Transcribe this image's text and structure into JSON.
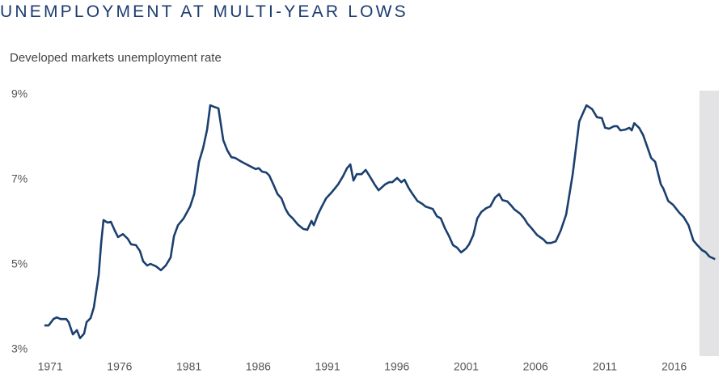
{
  "chart_data": {
    "type": "line",
    "title": "UNEMPLOYMENT AT MULTI-YEAR LOWS",
    "subtitle": "Developed markets unemployment rate",
    "xlim": [
      1970,
      2019.4
    ],
    "xticks": [
      1971,
      1976,
      1981,
      1986,
      1991,
      1996,
      2001,
      2006,
      2011,
      2016
    ],
    "ylim": [
      3,
      9
    ],
    "yticks": [
      {
        "value": 3,
        "label": "3%"
      },
      {
        "value": 5,
        "label": "5%"
      },
      {
        "value": 7,
        "label": "7%"
      },
      {
        "value": 9,
        "label": "9%"
      }
    ],
    "grid": false,
    "x": [
      1970.58,
      1970.88,
      1971.23,
      1971.46,
      1971.75,
      1972.16,
      1972.33,
      1972.63,
      1972.92,
      1973.15,
      1973.44,
      1973.62,
      1973.91,
      1974.14,
      1974.49,
      1974.67,
      1974.84,
      1975.13,
      1975.37,
      1975.66,
      1975.89,
      1976.24,
      1976.59,
      1976.83,
      1977.18,
      1977.47,
      1977.7,
      1977.99,
      1978.23,
      1978.63,
      1978.98,
      1979.33,
      1979.68,
      1979.92,
      1980.21,
      1980.62,
      1981.09,
      1981.38,
      1981.73,
      1982.02,
      1982.31,
      1982.54,
      1982.84,
      1983.13,
      1983.48,
      1983.77,
      1984.06,
      1984.35,
      1984.7,
      1985.05,
      1985.52,
      1985.81,
      1986.04,
      1986.28,
      1986.57,
      1986.8,
      1987.09,
      1987.39,
      1987.68,
      1987.97,
      1988.2,
      1988.49,
      1988.84,
      1989.25,
      1989.54,
      1989.84,
      1990.01,
      1990.3,
      1990.59,
      1990.89,
      1991.29,
      1991.76,
      1992.11,
      1992.4,
      1992.64,
      1992.87,
      1993.1,
      1993.45,
      1993.75,
      1994.04,
      1994.39,
      1994.68,
      1995.15,
      1995.44,
      1995.67,
      1996.02,
      1996.32,
      1996.55,
      1996.84,
      1997.13,
      1997.48,
      1997.83,
      1998.06,
      1998.59,
      1998.88,
      1999.17,
      1999.46,
      1999.76,
      2000.05,
      2000.34,
      2000.63,
      2000.98,
      2001.21,
      2001.51,
      2001.8,
      2002.09,
      2002.44,
      2002.73,
      2003.08,
      2003.37,
      2003.61,
      2003.96,
      2004.25,
      2004.48,
      2004.89,
      2005.18,
      2005.41,
      2005.76,
      2006.11,
      2006.58,
      2006.81,
      2007.11,
      2007.46,
      2007.81,
      2008.21,
      2008.68,
      2009.15,
      2009.67,
      2010.08,
      2010.43,
      2010.78,
      2011.02,
      2011.31,
      2011.66,
      2011.89,
      2012.12,
      2012.47,
      2012.76,
      2012.94,
      2013.12,
      2013.47,
      2013.76,
      2013.99,
      2014.34,
      2014.63,
      2015.04,
      2015.22,
      2015.57,
      2015.92,
      2016.38,
      2016.68,
      2017.03,
      2017.38,
      2017.67,
      2018.02,
      2018.25,
      2018.54,
      2018.95
    ],
    "series": [
      {
        "color": "#1b3f6e",
        "values": [
          3.57,
          3.57,
          3.72,
          3.76,
          3.72,
          3.72,
          3.65,
          3.36,
          3.46,
          3.27,
          3.38,
          3.65,
          3.74,
          3.99,
          4.75,
          5.51,
          6.05,
          5.99,
          6.01,
          5.8,
          5.65,
          5.72,
          5.61,
          5.48,
          5.46,
          5.32,
          5.08,
          4.98,
          5.02,
          4.96,
          4.87,
          4.98,
          5.17,
          5.67,
          5.93,
          6.09,
          6.37,
          6.66,
          7.42,
          7.74,
          8.18,
          8.75,
          8.71,
          8.68,
          7.93,
          7.69,
          7.53,
          7.51,
          7.44,
          7.38,
          7.3,
          7.25,
          7.27,
          7.19,
          7.17,
          7.1,
          6.89,
          6.66,
          6.56,
          6.31,
          6.18,
          6.09,
          5.95,
          5.84,
          5.82,
          6.03,
          5.93,
          6.18,
          6.37,
          6.56,
          6.7,
          6.89,
          7.08,
          7.27,
          7.36,
          6.98,
          7.13,
          7.13,
          7.23,
          7.08,
          6.89,
          6.75,
          6.89,
          6.94,
          6.94,
          7.04,
          6.94,
          7.0,
          6.81,
          6.66,
          6.5,
          6.43,
          6.37,
          6.31,
          6.14,
          6.09,
          5.86,
          5.67,
          5.46,
          5.4,
          5.29,
          5.38,
          5.48,
          5.7,
          6.09,
          6.24,
          6.33,
          6.37,
          6.58,
          6.66,
          6.52,
          6.49,
          6.39,
          6.3,
          6.2,
          6.09,
          5.97,
          5.84,
          5.7,
          5.59,
          5.51,
          5.51,
          5.55,
          5.8,
          6.18,
          7.13,
          8.37,
          8.75,
          8.66,
          8.47,
          8.45,
          8.22,
          8.2,
          8.26,
          8.26,
          8.16,
          8.18,
          8.22,
          8.16,
          8.33,
          8.22,
          8.05,
          7.84,
          7.51,
          7.42,
          6.89,
          6.79,
          6.5,
          6.41,
          6.22,
          6.12,
          5.93,
          5.57,
          5.46,
          5.34,
          5.3,
          5.19,
          5.13
        ]
      }
    ]
  }
}
